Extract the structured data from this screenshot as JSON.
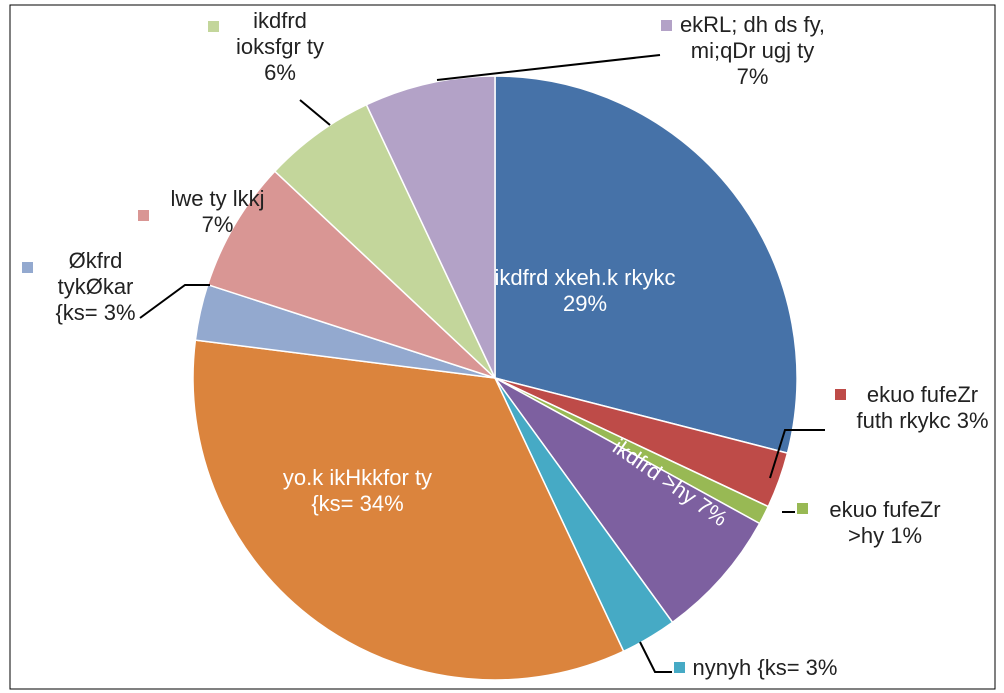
{
  "chart_data": {
    "type": "pie",
    "categories": [
      "ikdfrd xkeh.k rkykc",
      "ekuo fufeZr futh rkykc",
      "ekuo fufeZr >hy",
      "ikdfrd >hy",
      "nynyh {ks=",
      "yo.k ikHkkfor ty {ks=",
      "Økfrd tykØkar {ks=",
      "lwe ty lkkj",
      "ikdfrd ioksfgr ty",
      "ekRL; dh ds fy, mi;qDr ugj ty"
    ],
    "values": [
      29,
      3,
      1,
      7,
      3,
      34,
      3,
      7,
      6,
      7
    ],
    "value_labels": [
      "29%",
      "3%",
      "1%",
      "7%",
      "3%",
      "34%",
      "3%",
      "7%",
      "6%",
      "7%"
    ],
    "colors": [
      "#4672a8",
      "#be4b48",
      "#98b954",
      "#7d60a0",
      "#46aac5",
      "#db843d",
      "#93a9cf",
      "#d99694",
      "#c3d69b",
      "#b3a2c7"
    ]
  }
}
